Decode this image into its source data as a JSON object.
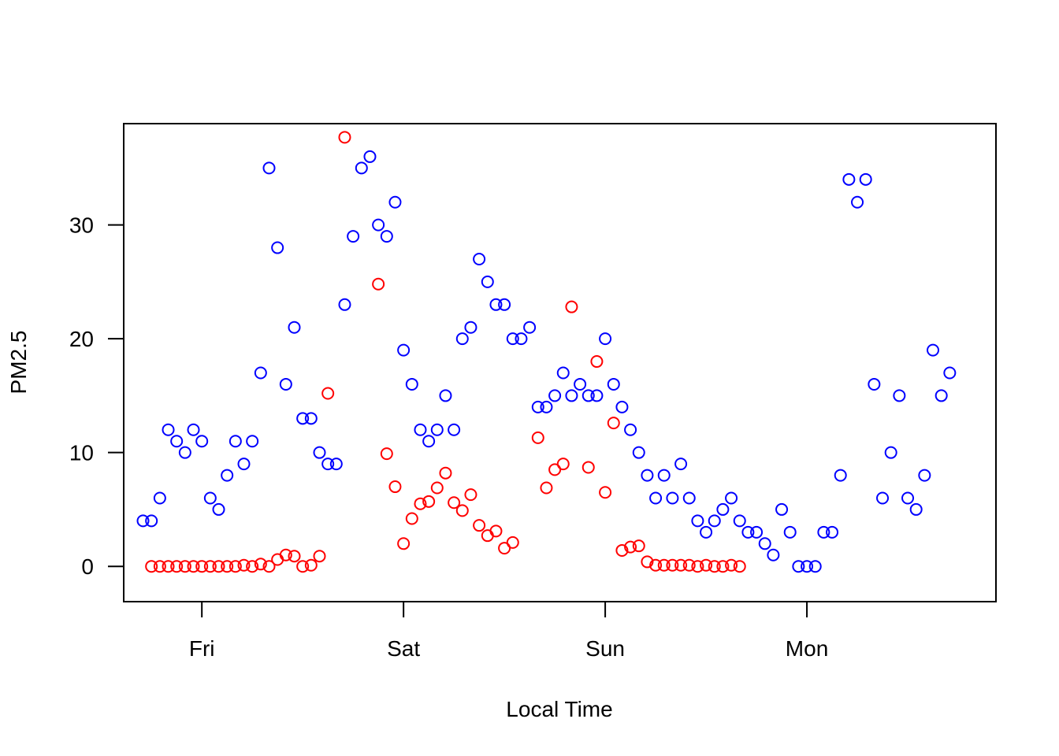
{
  "chart_data": {
    "type": "scatter",
    "title": "",
    "xlabel": "Local Time",
    "ylabel": "PM2.5",
    "x_ticks": [
      "Fri",
      "Sat",
      "Sun",
      "Mon"
    ],
    "y_ticks": [
      0,
      10,
      20,
      30
    ],
    "xlim": [
      -9.3,
      94.5
    ],
    "ylim": [
      -3.1,
      38.9
    ],
    "grid": false,
    "legend": "none",
    "series": [
      {
        "color": "#0000ff",
        "marker": "open-circle",
        "values": [
          [
            -7,
            4
          ],
          [
            -6,
            4
          ],
          [
            -5,
            6
          ],
          [
            -4,
            12
          ],
          [
            -3,
            11
          ],
          [
            -2,
            10
          ],
          [
            -1,
            12
          ],
          [
            0,
            11
          ],
          [
            1,
            6
          ],
          [
            2,
            5
          ],
          [
            3,
            8
          ],
          [
            4,
            11
          ],
          [
            5,
            9
          ],
          [
            6,
            11
          ],
          [
            7,
            17
          ],
          [
            8,
            35
          ],
          [
            9,
            28
          ],
          [
            10,
            16
          ],
          [
            11,
            21
          ],
          [
            12,
            13
          ],
          [
            13,
            13
          ],
          [
            14,
            10
          ],
          [
            15,
            9
          ],
          [
            16,
            9
          ],
          [
            17,
            23
          ],
          [
            18,
            29
          ],
          [
            19,
            35
          ],
          [
            20,
            36
          ],
          [
            21,
            30
          ],
          [
            22,
            29
          ],
          [
            23,
            32
          ],
          [
            24,
            19
          ],
          [
            25,
            16
          ],
          [
            26,
            12
          ],
          [
            27,
            11
          ],
          [
            28,
            12
          ],
          [
            29,
            15
          ],
          [
            30,
            12
          ],
          [
            31,
            20
          ],
          [
            32,
            21
          ],
          [
            33,
            27
          ],
          [
            34,
            25
          ],
          [
            35,
            23
          ],
          [
            36,
            23
          ],
          [
            37,
            20
          ],
          [
            38,
            20
          ],
          [
            39,
            21
          ],
          [
            40,
            14
          ],
          [
            41,
            14
          ],
          [
            42,
            15
          ],
          [
            43,
            17
          ],
          [
            44,
            15
          ],
          [
            45,
            16
          ],
          [
            46,
            15
          ],
          [
            47,
            15
          ],
          [
            48,
            20
          ],
          [
            49,
            16
          ],
          [
            50,
            14
          ],
          [
            51,
            12
          ],
          [
            52,
            10
          ],
          [
            53,
            8
          ],
          [
            54,
            6
          ],
          [
            55,
            8
          ],
          [
            56,
            6
          ],
          [
            57,
            9
          ],
          [
            58,
            6
          ],
          [
            59,
            4
          ],
          [
            60,
            3
          ],
          [
            61,
            4
          ],
          [
            62,
            5
          ],
          [
            63,
            6
          ],
          [
            64,
            4
          ],
          [
            65,
            3
          ],
          [
            66,
            3
          ],
          [
            67,
            2
          ],
          [
            68,
            1
          ],
          [
            69,
            5
          ],
          [
            70,
            3
          ],
          [
            71,
            0
          ],
          [
            72,
            0
          ],
          [
            73,
            0
          ],
          [
            74,
            3
          ],
          [
            75,
            3
          ],
          [
            76,
            8
          ],
          [
            77,
            34
          ],
          [
            78,
            32
          ],
          [
            79,
            34
          ],
          [
            80,
            16
          ],
          [
            81,
            6
          ],
          [
            82,
            10
          ],
          [
            83,
            15
          ],
          [
            84,
            6
          ],
          [
            85,
            5
          ],
          [
            86,
            8
          ],
          [
            87,
            19
          ],
          [
            88,
            15
          ],
          [
            89,
            17
          ]
        ]
      },
      {
        "color": "#ff0000",
        "marker": "open-circle",
        "values": [
          [
            -6,
            0
          ],
          [
            -5,
            0
          ],
          [
            -4,
            0
          ],
          [
            -3,
            0
          ],
          [
            -2,
            0
          ],
          [
            -1,
            0
          ],
          [
            0,
            0
          ],
          [
            1,
            0
          ],
          [
            2,
            0
          ],
          [
            3,
            0
          ],
          [
            4,
            0
          ],
          [
            5,
            0.1
          ],
          [
            6,
            0
          ],
          [
            7,
            0.2
          ],
          [
            8,
            0
          ],
          [
            9,
            0.6
          ],
          [
            10,
            1
          ],
          [
            11,
            0.9
          ],
          [
            12,
            0
          ],
          [
            13,
            0.1
          ],
          [
            14,
            0.9
          ],
          [
            15,
            15.2
          ],
          [
            17,
            37.7
          ],
          [
            21,
            24.8
          ],
          [
            22,
            9.9
          ],
          [
            23,
            7
          ],
          [
            24,
            2
          ],
          [
            25,
            4.2
          ],
          [
            26,
            5.5
          ],
          [
            27,
            5.7
          ],
          [
            28,
            6.9
          ],
          [
            29,
            8.2
          ],
          [
            30,
            5.6
          ],
          [
            31,
            4.9
          ],
          [
            32,
            6.3
          ],
          [
            33,
            3.6
          ],
          [
            34,
            2.7
          ],
          [
            35,
            3.1
          ],
          [
            36,
            1.6
          ],
          [
            37,
            2.1
          ],
          [
            40,
            11.3
          ],
          [
            41,
            6.9
          ],
          [
            42,
            8.5
          ],
          [
            43,
            9
          ],
          [
            44,
            22.8
          ],
          [
            46,
            8.7
          ],
          [
            47,
            18
          ],
          [
            48,
            6.5
          ],
          [
            49,
            12.6
          ],
          [
            50,
            1.4
          ],
          [
            51,
            1.7
          ],
          [
            52,
            1.8
          ],
          [
            53,
            0.4
          ],
          [
            54,
            0.1
          ],
          [
            55,
            0.1
          ],
          [
            56,
            0.1
          ],
          [
            57,
            0.1
          ],
          [
            58,
            0.1
          ],
          [
            59,
            0
          ],
          [
            60,
            0.1
          ],
          [
            61,
            0
          ],
          [
            62,
            0
          ],
          [
            63,
            0.1
          ],
          [
            64,
            0
          ]
        ]
      }
    ]
  }
}
